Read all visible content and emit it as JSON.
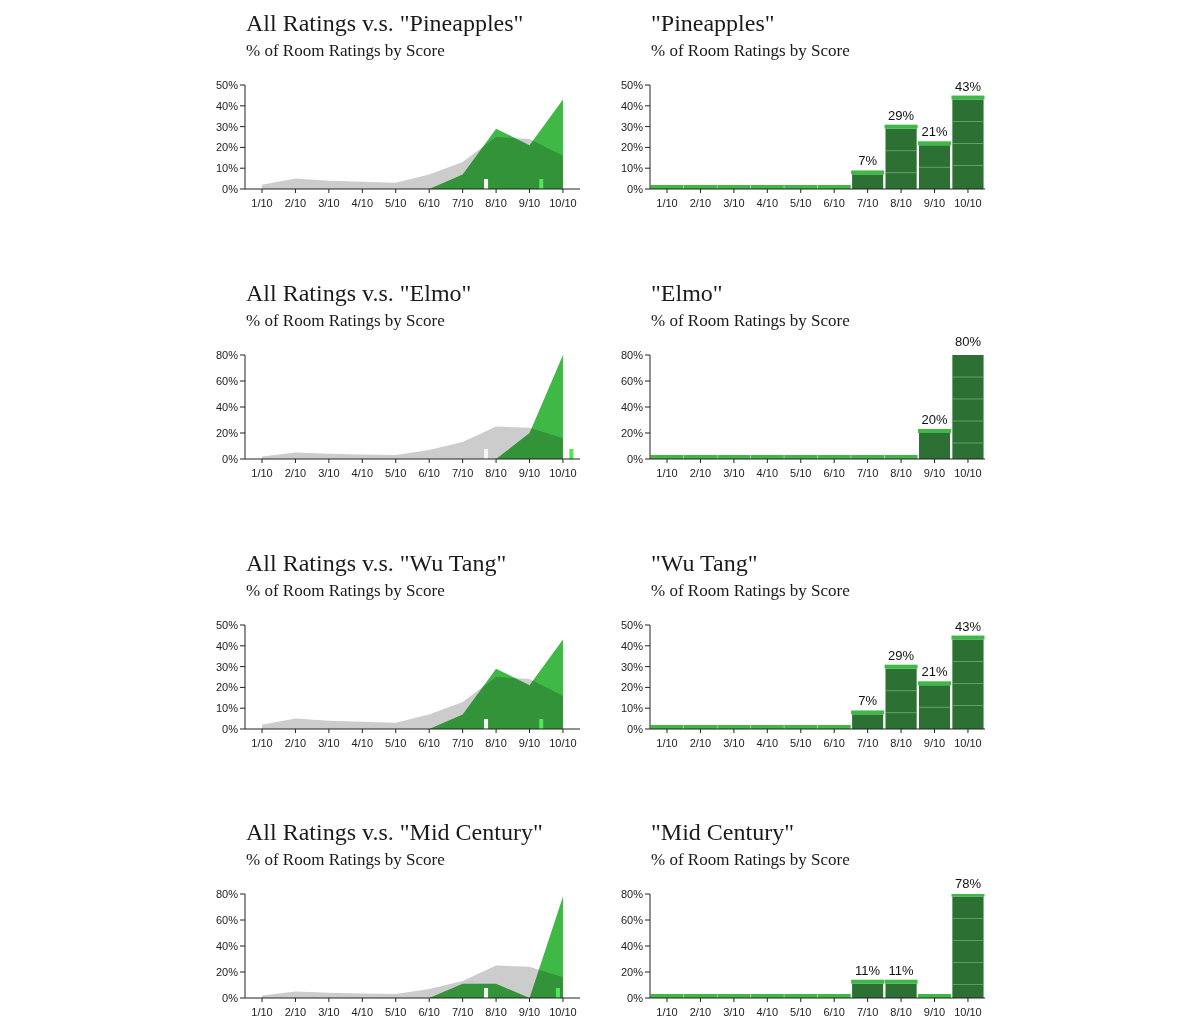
{
  "chart_data": [
    {
      "type": "area",
      "title": "All Ratings v.s. \"Pineapples\"",
      "subtitle": "% of Room Ratings by Score",
      "categories": [
        "1/10",
        "2/10",
        "3/10",
        "4/10",
        "5/10",
        "6/10",
        "7/10",
        "8/10",
        "9/10",
        "10/10"
      ],
      "series": [
        {
          "color": "#cccccc",
          "values": [
            2,
            5,
            4,
            3.5,
            3,
            7,
            13,
            25,
            24,
            16
          ],
          "mean": 7.7
        },
        {
          "color": "#40b846",
          "values": [
            0,
            0,
            0,
            0,
            0,
            0,
            7,
            29,
            21,
            43
          ],
          "mean": 9.35
        }
      ],
      "ylim": [
        0,
        50
      ],
      "yticks": [
        {
          "value": 0,
          "label": "0%"
        },
        {
          "value": 10,
          "label": "10%"
        },
        {
          "value": 20,
          "label": "20%"
        },
        {
          "value": 30,
          "label": "30%"
        },
        {
          "value": 40,
          "label": "40%"
        },
        {
          "value": 50,
          "label": "50%"
        }
      ]
    },
    {
      "type": "bar",
      "title": "\"Pineapples\"",
      "subtitle": "% of Room Ratings by Score",
      "categories": [
        "1/10",
        "2/10",
        "3/10",
        "4/10",
        "5/10",
        "6/10",
        "7/10",
        "8/10",
        "9/10",
        "10/10"
      ],
      "values": [
        0,
        0,
        0,
        0,
        0,
        0,
        7,
        29,
        21,
        43
      ],
      "value_labels": [
        null,
        null,
        null,
        null,
        null,
        null,
        "7%",
        "29%",
        "21%",
        "43%"
      ],
      "color": "#40b846",
      "data_labels": true,
      "ylim": [
        0,
        50
      ],
      "yticks": [
        {
          "value": 0,
          "label": "0%"
        },
        {
          "value": 10,
          "label": "10%"
        },
        {
          "value": 20,
          "label": "20%"
        },
        {
          "value": 30,
          "label": "30%"
        },
        {
          "value": 40,
          "label": "40%"
        },
        {
          "value": 50,
          "label": "50%"
        }
      ]
    },
    {
      "type": "area",
      "title": "All Ratings v.s. \"Elmo\"",
      "subtitle": "% of Room Ratings by Score",
      "categories": [
        "1/10",
        "2/10",
        "3/10",
        "4/10",
        "5/10",
        "6/10",
        "7/10",
        "8/10",
        "9/10",
        "10/10"
      ],
      "series": [
        {
          "color": "#cccccc",
          "values": [
            2,
            5,
            4,
            3.5,
            3,
            7,
            13,
            25,
            24,
            16
          ],
          "mean": 7.7
        },
        {
          "color": "#40b846",
          "values": [
            0,
            0,
            0,
            0,
            0,
            0,
            0,
            0,
            20,
            80
          ],
          "mean": 10.25
        }
      ],
      "ylim": [
        0,
        80
      ],
      "yticks": [
        {
          "value": 0,
          "label": "0%"
        },
        {
          "value": 20,
          "label": "20%"
        },
        {
          "value": 40,
          "label": "40%"
        },
        {
          "value": 60,
          "label": "60%"
        },
        {
          "value": 80,
          "label": "80%"
        }
      ]
    },
    {
      "type": "bar",
      "title": "\"Elmo\"",
      "subtitle": "% of Room Ratings by Score",
      "categories": [
        "1/10",
        "2/10",
        "3/10",
        "4/10",
        "5/10",
        "6/10",
        "7/10",
        "8/10",
        "9/10",
        "10/10"
      ],
      "values": [
        0,
        0,
        0,
        0,
        0,
        0,
        0,
        0,
        20,
        80
      ],
      "value_labels": [
        null,
        null,
        null,
        null,
        null,
        null,
        null,
        null,
        "20%",
        "80%"
      ],
      "color": "#40b846",
      "data_labels": true,
      "ylim": [
        0,
        80
      ],
      "yticks": [
        {
          "value": 0,
          "label": "0%"
        },
        {
          "value": 20,
          "label": "20%"
        },
        {
          "value": 40,
          "label": "40%"
        },
        {
          "value": 60,
          "label": "60%"
        },
        {
          "value": 80,
          "label": "80%"
        }
      ]
    },
    {
      "type": "area",
      "title": "All Ratings v.s. \"Wu Tang\"",
      "subtitle": "% of Room Ratings by Score",
      "categories": [
        "1/10",
        "2/10",
        "3/10",
        "4/10",
        "5/10",
        "6/10",
        "7/10",
        "8/10",
        "9/10",
        "10/10"
      ],
      "series": [
        {
          "color": "#cccccc",
          "values": [
            2,
            5,
            4,
            3.5,
            3,
            7,
            13,
            25,
            24,
            16
          ],
          "mean": 7.7
        },
        {
          "color": "#40b846",
          "values": [
            0,
            0,
            0,
            0,
            0,
            0,
            7,
            29,
            21,
            43
          ],
          "mean": 9.35
        }
      ],
      "ylim": [
        0,
        50
      ],
      "yticks": [
        {
          "value": 0,
          "label": "0%"
        },
        {
          "value": 10,
          "label": "10%"
        },
        {
          "value": 20,
          "label": "20%"
        },
        {
          "value": 30,
          "label": "30%"
        },
        {
          "value": 40,
          "label": "40%"
        },
        {
          "value": 50,
          "label": "50%"
        }
      ]
    },
    {
      "type": "bar",
      "title": "\"Wu Tang\"",
      "subtitle": "% of Room Ratings by Score",
      "categories": [
        "1/10",
        "2/10",
        "3/10",
        "4/10",
        "5/10",
        "6/10",
        "7/10",
        "8/10",
        "9/10",
        "10/10"
      ],
      "values": [
        0,
        0,
        0,
        0,
        0,
        0,
        7,
        29,
        21,
        43
      ],
      "value_labels": [
        null,
        null,
        null,
        null,
        null,
        null,
        "7%",
        "29%",
        "21%",
        "43%"
      ],
      "color": "#40b846",
      "data_labels": true,
      "ylim": [
        0,
        50
      ],
      "yticks": [
        {
          "value": 0,
          "label": "0%"
        },
        {
          "value": 10,
          "label": "10%"
        },
        {
          "value": 20,
          "label": "20%"
        },
        {
          "value": 30,
          "label": "30%"
        },
        {
          "value": 40,
          "label": "40%"
        },
        {
          "value": 50,
          "label": "50%"
        }
      ]
    },
    {
      "type": "area",
      "title": "All Ratings v.s. \"Mid Century\"",
      "subtitle": "% of Room Ratings by Score",
      "categories": [
        "1/10",
        "2/10",
        "3/10",
        "4/10",
        "5/10",
        "6/10",
        "7/10",
        "8/10",
        "9/10",
        "10/10"
      ],
      "series": [
        {
          "color": "#cccccc",
          "values": [
            2,
            5,
            4,
            3.5,
            3,
            7,
            13,
            25,
            24,
            16
          ],
          "mean": 7.7
        },
        {
          "color": "#40b846",
          "values": [
            0,
            0,
            0,
            0,
            0,
            0,
            11,
            11,
            0,
            78
          ],
          "mean": 9.85
        }
      ],
      "ylim": [
        0,
        80
      ],
      "yticks": [
        {
          "value": 0,
          "label": "0%"
        },
        {
          "value": 20,
          "label": "20%"
        },
        {
          "value": 40,
          "label": "40%"
        },
        {
          "value": 60,
          "label": "60%"
        },
        {
          "value": 80,
          "label": "80%"
        }
      ]
    },
    {
      "type": "bar",
      "title": "\"Mid Century\"",
      "subtitle": "% of Room Ratings by Score",
      "categories": [
        "1/10",
        "2/10",
        "3/10",
        "4/10",
        "5/10",
        "6/10",
        "7/10",
        "8/10",
        "9/10",
        "10/10"
      ],
      "values": [
        0,
        0,
        0,
        0,
        0,
        0,
        11,
        11,
        0,
        78
      ],
      "value_labels": [
        null,
        null,
        null,
        null,
        null,
        null,
        "11%",
        "11%",
        null,
        "78%"
      ],
      "color": "#40b846",
      "data_labels": true,
      "ylim": [
        0,
        80
      ],
      "yticks": [
        {
          "value": 0,
          "label": "0%"
        },
        {
          "value": 20,
          "label": "20%"
        },
        {
          "value": 40,
          "label": "40%"
        },
        {
          "value": 60,
          "label": "60%"
        },
        {
          "value": 80,
          "label": "80%"
        }
      ]
    }
  ]
}
